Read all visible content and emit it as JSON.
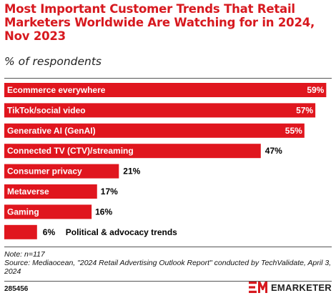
{
  "chart_data": {
    "type": "bar",
    "orientation": "horizontal",
    "title": "Most Important Customer Trends That Retail Marketers Worldwide Are Watching for in 2024, Nov 2023",
    "subtitle": "% of respondents",
    "categories": [
      "Ecommerce everywhere",
      "TikTok/social video",
      "Generative AI (GenAI)",
      "Connected TV (CTV)/streaming",
      "Consumer privacy",
      "Metaverse",
      "Gaming",
      "Political & advocacy trends"
    ],
    "values": [
      59,
      57,
      55,
      47,
      21,
      17,
      16,
      6
    ],
    "value_labels": [
      "59%",
      "57%",
      "55%",
      "47%",
      "21%",
      "17%",
      "16%",
      "6%"
    ],
    "xlim": [
      0,
      60
    ],
    "grid": false,
    "bar_color": "#e0161e"
  },
  "footer": {
    "note": "Note: n=117",
    "source": "Source: Mediaocean, \"2024 Retail Advertising Outlook Report\" conducted by TechValidate, April 3, 2024",
    "chart_id": "285456",
    "brand": "EMARKETER"
  },
  "colors": {
    "accent": "#d7191f",
    "bar": "#e0161e",
    "label_on_bar": "#ffffff",
    "label_off_bar": "#000000"
  }
}
